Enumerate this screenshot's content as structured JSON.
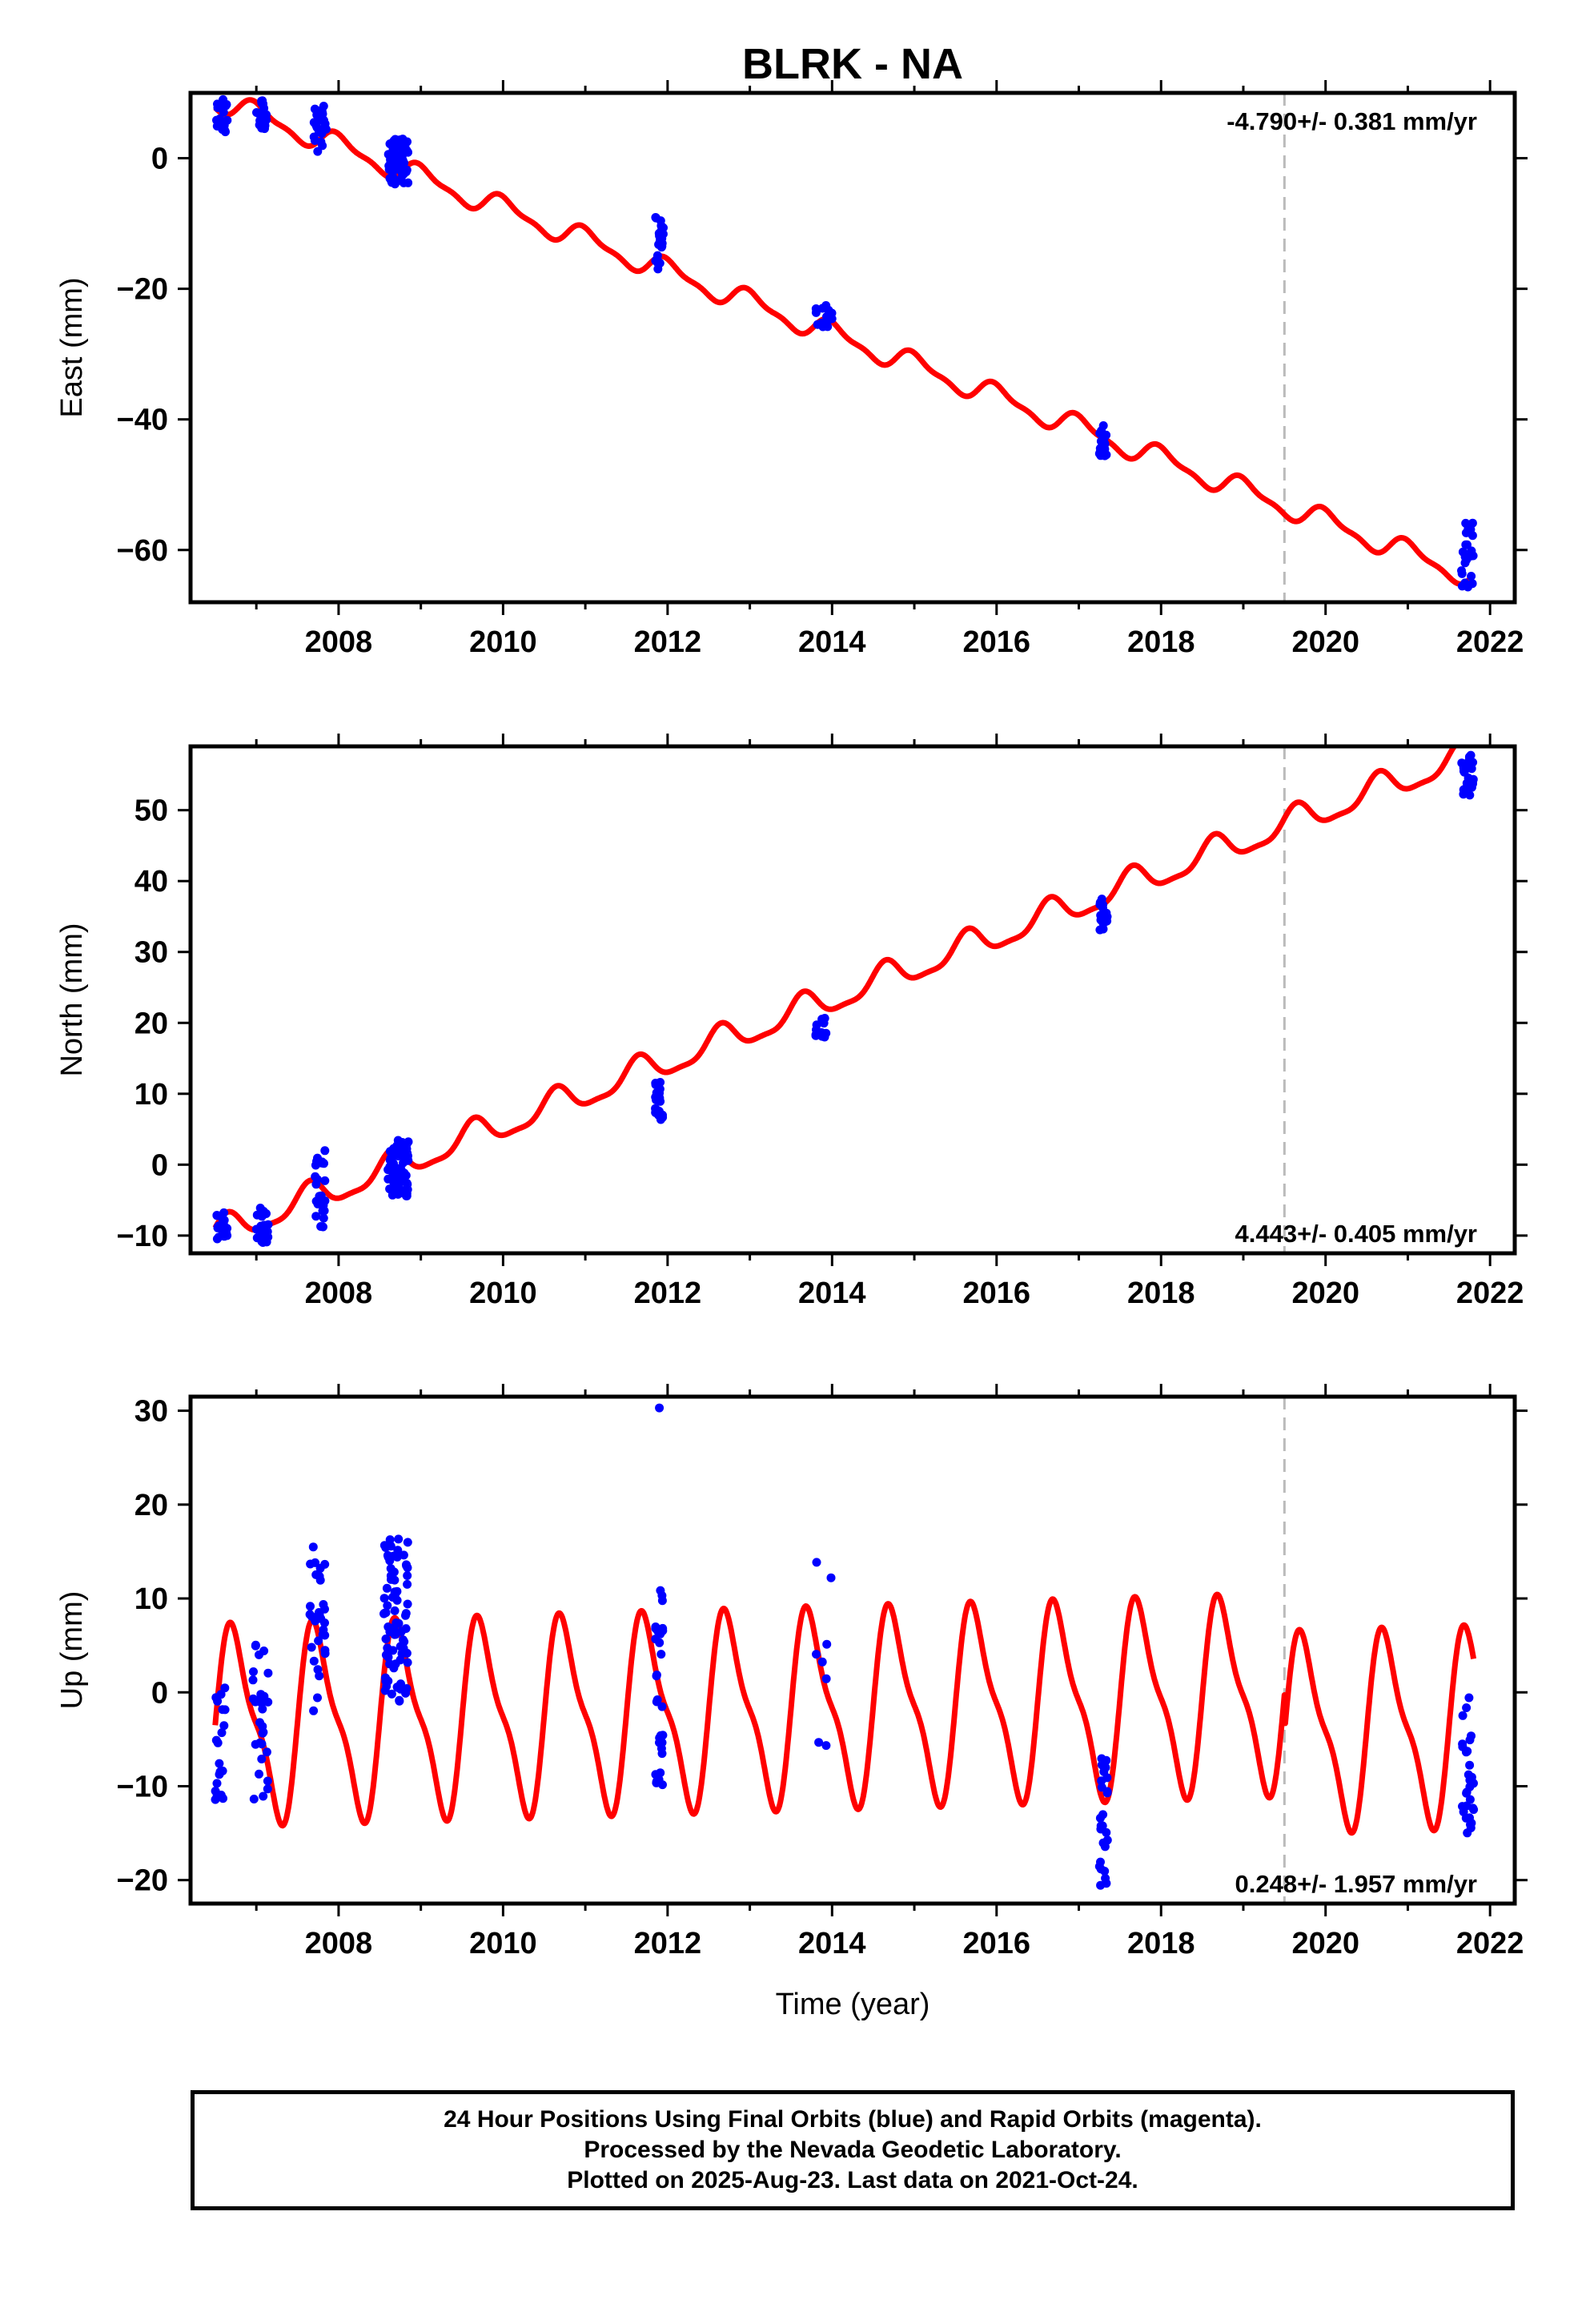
{
  "title": "BLRK - NA",
  "xlabel": "Time (year)",
  "colors": {
    "data": "#0000ff",
    "model": "#ff0000",
    "event_line": "#bbbbbb",
    "axes": "#000000"
  },
  "footer": {
    "line1": "24 Hour Positions Using Final Orbits (blue) and Rapid Orbits (magenta).",
    "line2": "Processed by the Nevada Geodetic Laboratory.",
    "line3": "Plotted on 2025-Aug-23. Last data on 2021-Oct-24."
  },
  "chart_data": [
    {
      "type": "scatter",
      "component": "East",
      "ylabel": "East (mm)",
      "rate_label": "-4.790+/- 0.381 mm/yr",
      "rate_position": "top-right",
      "xlim": [
        2006.2,
        2022.3
      ],
      "ylim": [
        -68,
        10
      ],
      "x_ticks": [
        2008,
        2010,
        2012,
        2014,
        2016,
        2018,
        2020,
        2022
      ],
      "y_ticks": [
        0,
        -20,
        -40,
        -60
      ],
      "event_line_x": 2019.5,
      "model": {
        "color": "red",
        "rate_mm_per_yr": -4.79,
        "anchor": [
          2006.8,
          7.6
        ],
        "annual_amp": 1.6,
        "semiannual_amp": 0.6,
        "phase": 0.2
      },
      "clusters": [
        {
          "x": [
            2006.5,
            2006.65
          ],
          "y": [
            3,
            9
          ],
          "n": 20
        },
        {
          "x": [
            2007.0,
            2007.15
          ],
          "y": [
            4.5,
            9
          ],
          "n": 22
        },
        {
          "x": [
            2007.7,
            2007.85
          ],
          "y": [
            1,
            8
          ],
          "n": 26
        },
        {
          "x": [
            2008.6,
            2008.85
          ],
          "y": [
            -4,
            3
          ],
          "n": 70
        },
        {
          "x": [
            2011.85,
            2011.95
          ],
          "y": [
            -17,
            -9
          ],
          "n": 24
        },
        {
          "x": [
            2013.8,
            2014.0
          ],
          "y": [
            -26,
            -22.5
          ],
          "n": 16
        },
        {
          "x": [
            2017.25,
            2017.35
          ],
          "y": [
            -46,
            -40.5
          ],
          "n": 16
        },
        {
          "x": [
            2021.65,
            2021.8
          ],
          "y": [
            -66,
            -55.5
          ],
          "n": 26
        }
      ]
    },
    {
      "type": "scatter",
      "component": "North",
      "ylabel": "North (mm)",
      "rate_label": "4.443+/- 0.405 mm/yr",
      "rate_position": "bottom-right",
      "xlim": [
        2006.2,
        2022.3
      ],
      "ylim": [
        -12.5,
        59
      ],
      "x_ticks": [
        2008,
        2010,
        2012,
        2014,
        2016,
        2018,
        2020,
        2022
      ],
      "y_ticks": [
        -10,
        0,
        10,
        20,
        30,
        40,
        50
      ],
      "event_line_x": 2019.5,
      "model": {
        "color": "red",
        "rate_mm_per_yr": 4.443,
        "anchor": [
          2006.6,
          -9.5
        ],
        "annual_amp": 2.0,
        "semiannual_amp": 0.6,
        "phase": 1.3
      },
      "clusters": [
        {
          "x": [
            2006.5,
            2006.65
          ],
          "y": [
            -10.5,
            -6.5
          ],
          "n": 18
        },
        {
          "x": [
            2007.0,
            2007.15
          ],
          "y": [
            -11,
            -6
          ],
          "n": 24
        },
        {
          "x": [
            2007.7,
            2007.85
          ],
          "y": [
            -9,
            2
          ],
          "n": 24
        },
        {
          "x": [
            2008.6,
            2008.85
          ],
          "y": [
            -4.5,
            3.5
          ],
          "n": 70
        },
        {
          "x": [
            2011.85,
            2011.95
          ],
          "y": [
            6,
            12
          ],
          "n": 24
        },
        {
          "x": [
            2013.8,
            2013.95
          ],
          "y": [
            18,
            21
          ],
          "n": 14
        },
        {
          "x": [
            2017.25,
            2017.35
          ],
          "y": [
            33,
            38
          ],
          "n": 16
        },
        {
          "x": [
            2021.65,
            2021.8
          ],
          "y": [
            52,
            58
          ],
          "n": 26
        }
      ]
    },
    {
      "type": "scatter",
      "component": "Up",
      "ylabel": "Up (mm)",
      "rate_label": "0.248+/- 1.957 mm/yr",
      "rate_position": "bottom-right",
      "xlim": [
        2006.2,
        2022.3
      ],
      "ylim": [
        -22.5,
        31.5
      ],
      "x_ticks": [
        2008,
        2010,
        2012,
        2014,
        2016,
        2018,
        2020,
        2022
      ],
      "y_ticks": [
        -20,
        -10,
        0,
        10,
        20,
        30
      ],
      "event_line_x": 2019.5,
      "model": {
        "color": "red",
        "rate_mm_per_yr": 0.248,
        "anchor": [
          2006.5,
          -3.5
        ],
        "annual_amp": 9.5,
        "semiannual_amp": 3.0,
        "phase": 0.0,
        "post_event_offset": -8
      },
      "clusters": [
        {
          "x": [
            2006.5,
            2006.62
          ],
          "y": [
            -12,
            1
          ],
          "n": 20
        },
        {
          "x": [
            2006.95,
            2007.15
          ],
          "y": [
            -12,
            5.5
          ],
          "n": 30
        },
        {
          "x": [
            2007.65,
            2007.85
          ],
          "y": [
            -2,
            16.5
          ],
          "n": 30
        },
        {
          "x": [
            2008.55,
            2008.85
          ],
          "y": [
            -1,
            17
          ],
          "n": 80
        },
        {
          "x": [
            2011.85,
            2011.95
          ],
          "y": [
            -10,
            11.5
          ],
          "n": 30
        },
        {
          "x": [
            2013.8,
            2014.0
          ],
          "y": [
            -6,
            15
          ],
          "n": 8
        },
        {
          "x": [
            2017.25,
            2017.35
          ],
          "y": [
            -21,
            -7
          ],
          "n": 26
        },
        {
          "x": [
            2021.65,
            2021.8
          ],
          "y": [
            -15,
            0
          ],
          "n": 30
        }
      ],
      "outliers": [
        {
          "x": 2011.9,
          "y": 30.3
        }
      ]
    }
  ]
}
